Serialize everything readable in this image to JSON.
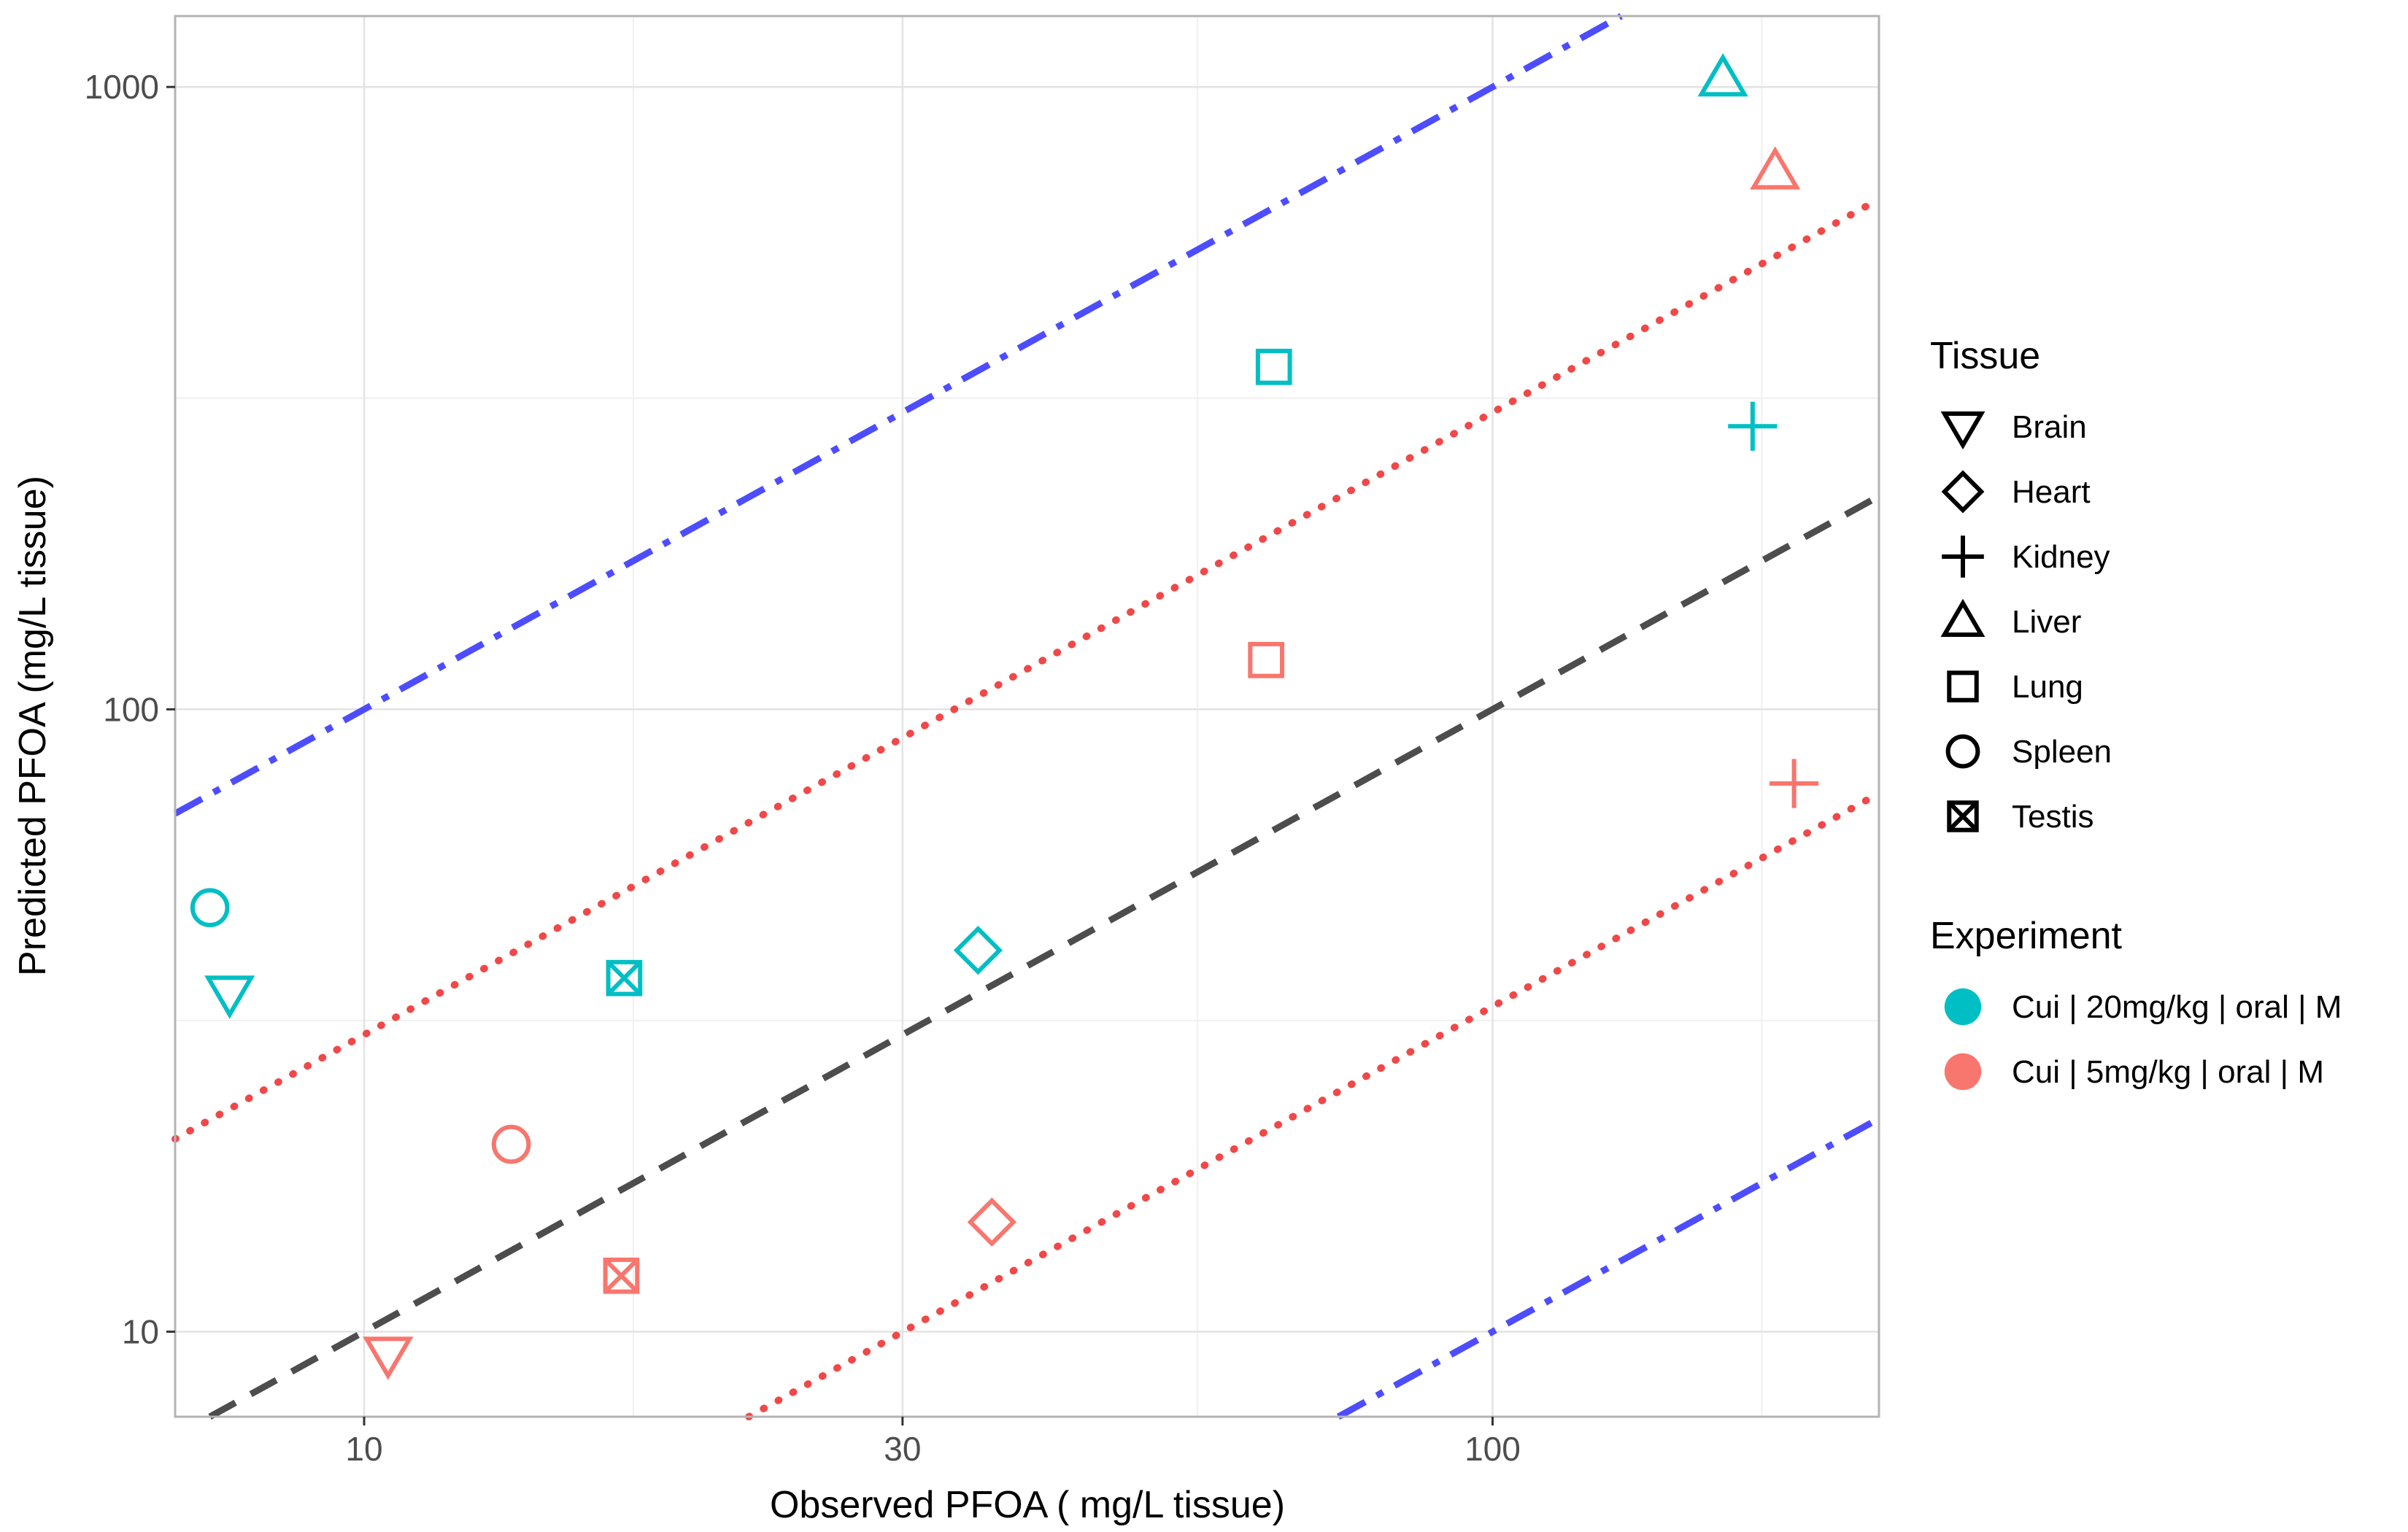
{
  "chart_data": {
    "type": "scatter",
    "title": "",
    "xlabel": "Observed PFOA ( mg/L tissue)",
    "ylabel": "Predicted PFOA (mg/L tissue)",
    "x_scale": "log10",
    "y_scale": "log10",
    "xlim": [
      6.8,
      220
    ],
    "ylim": [
      7.3,
      1300
    ],
    "x_ticks": [
      10,
      30,
      100
    ],
    "x_tick_labels": [
      "10",
      "30",
      "100"
    ],
    "y_ticks": [
      10,
      100,
      1000
    ],
    "y_tick_labels": [
      "10",
      "100",
      "1000"
    ],
    "grid": true,
    "legend_position": "right",
    "reference_lines": [
      {
        "ratio": 1,
        "style": "dashed",
        "color": "#4d4d4d"
      },
      {
        "ratio": 3,
        "style": "dotted",
        "color": "#f04848"
      },
      {
        "ratio": 0.333,
        "style": "dotted",
        "color": "#f04848"
      },
      {
        "ratio": 10,
        "style": "dashdot",
        "color": "#4d4dff"
      },
      {
        "ratio": 0.1,
        "style": "dashdot",
        "color": "#4d4dff"
      }
    ],
    "legend_tissue": {
      "title": "Tissue",
      "entries": [
        {
          "label": "Brain",
          "shape": "triangle-down"
        },
        {
          "label": "Heart",
          "shape": "diamond"
        },
        {
          "label": "Kidney",
          "shape": "plus"
        },
        {
          "label": "Liver",
          "shape": "triangle-up"
        },
        {
          "label": "Lung",
          "shape": "square"
        },
        {
          "label": "Spleen",
          "shape": "circle"
        },
        {
          "label": "Testis",
          "shape": "square-x"
        }
      ]
    },
    "legend_experiment": {
      "title": "Experiment",
      "entries": [
        {
          "label": "Cui | 20mg/kg | oral | M",
          "color": "#00bfc4"
        },
        {
          "label": "Cui | 5mg/kg | oral | M",
          "color": "#f8766d"
        }
      ]
    },
    "series": [
      {
        "experiment": "Cui | 20mg/kg | oral | M",
        "color": "#00bfc4",
        "points": [
          {
            "tissue": "Brain",
            "x": 7.6,
            "y": 35
          },
          {
            "tissue": "Heart",
            "x": 35,
            "y": 41
          },
          {
            "tissue": "Kidney",
            "x": 170,
            "y": 285
          },
          {
            "tissue": "Liver",
            "x": 160,
            "y": 1030
          },
          {
            "tissue": "Lung",
            "x": 64,
            "y": 355
          },
          {
            "tissue": "Spleen",
            "x": 7.3,
            "y": 48
          },
          {
            "tissue": "Testis",
            "x": 17,
            "y": 37
          }
        ]
      },
      {
        "experiment": "Cui | 5mg/kg | oral | M",
        "color": "#f8766d",
        "points": [
          {
            "tissue": "Brain",
            "x": 10.5,
            "y": 9.2
          },
          {
            "tissue": "Heart",
            "x": 36,
            "y": 15
          },
          {
            "tissue": "Kidney",
            "x": 185,
            "y": 76
          },
          {
            "tissue": "Liver",
            "x": 178,
            "y": 730
          },
          {
            "tissue": "Lung",
            "x": 63,
            "y": 120
          },
          {
            "tissue": "Spleen",
            "x": 13.5,
            "y": 20
          },
          {
            "tissue": "Testis",
            "x": 16.9,
            "y": 12.3
          }
        ]
      }
    ]
  }
}
